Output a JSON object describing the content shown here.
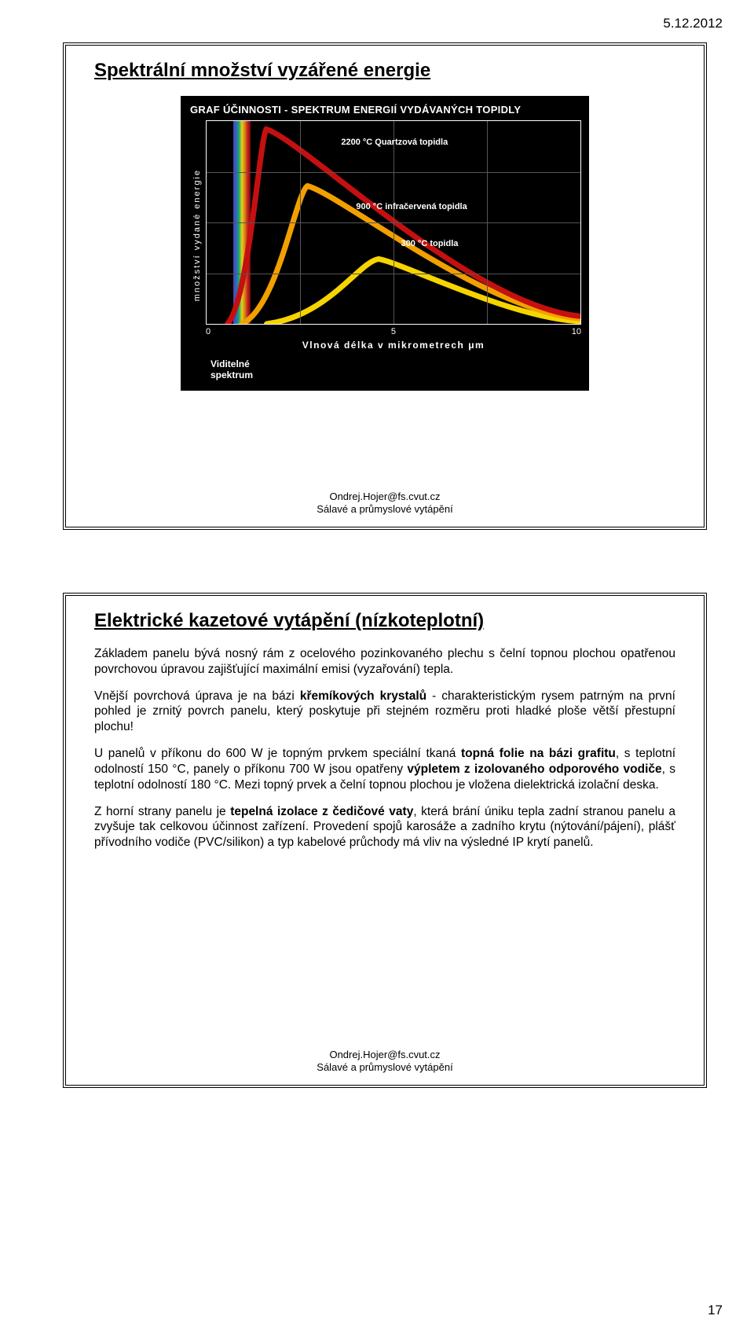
{
  "header": {
    "date": "5.12.2012",
    "page_number": "17"
  },
  "footer": {
    "email": "Ondrej.Hojer@fs.cvut.cz",
    "course": "Sálavé a průmyslové vytápění"
  },
  "slide1": {
    "title": "Spektrální množství vyzářené energie",
    "chart": {
      "title": "GRAF ÚČINNOSTI - SPEKTRUM ENERGIÍ VYDÁVANÝCH TOPIDLY",
      "ylabel": "množství vydané energie",
      "xlabel": "Vlnová délka v mikrometrech μm",
      "xticks": [
        "0",
        "5",
        "10"
      ],
      "visible_label_1": "Viditelné",
      "visible_label_2": "spektrum",
      "series": {
        "quartz": {
          "label": "2200 °C Quartzová topidla",
          "color": "#c41010",
          "peak_x_frac": 0.16,
          "peak_h_frac": 0.96
        },
        "infra": {
          "label": "900 °C infračervená topidla",
          "color": "#f2a000",
          "peak_x_frac": 0.27,
          "peak_h_frac": 0.68
        },
        "low": {
          "label": "300 °C topidla",
          "color": "#f6d400",
          "peak_x_frac": 0.46,
          "peak_h_frac": 0.32
        }
      },
      "label_pos": {
        "quartz": {
          "left_pct": 36,
          "top_pct": 8
        },
        "infra": {
          "left_pct": 40,
          "top_pct": 40
        },
        "low": {
          "left_pct": 52,
          "top_pct": 58
        }
      },
      "grid": {
        "v_fracs": [
          0.25,
          0.5,
          0.75
        ],
        "h_fracs": [
          0.25,
          0.5,
          0.75
        ]
      },
      "background": "#000000",
      "text_color": "#ffffff"
    }
  },
  "slide2": {
    "title": "Elektrické kazetové vytápění (nízkoteplotní)",
    "p1a": "Základem panelu bývá nosný rám z ocelového pozinkovaného plechu s čelní topnou plochou opatřenou povrchovou úpravou zajišťující maximální emisi (vyzařování) tepla.",
    "p2a": "Vnější povrchová úprava je na bázi ",
    "p2b_bold": "křemíkových krystalů",
    "p2c": " - charakteristickým rysem patrným na první pohled je zrnitý povrch panelu, který poskytuje při stejném rozměru proti hladké ploše větší přestupní plochu!",
    "p3a": "U panelů v příkonu do 600 W je topným prvkem speciální tkaná ",
    "p3b_bold": "topná folie na bázi grafitu",
    "p3c": ", s teplotní odolností 150 °C, panely o příkonu 700 W jsou opatřeny ",
    "p3d_bold": "výpletem z izolovaného odporového vodiče",
    "p3e": ", s teplotní odolností 180 °C. Mezi topný prvek a čelní topnou plochou je vložena dielektrická izolační деска.",
    "p3e_fix": ", s teplotní odolností 180 °C. Mezi topný prvek a čelní topnou plochou je vložena dielektrická izolační deska.",
    "p4a": "Z horní strany panelu je ",
    "p4b_bold": "tepelná izolace z čedičové vaty",
    "p4c": ", která brání úniku tepla zadní stranou panelu a zvyšuje tak celkovou účinnost zařízení. Provedení spojů karosáže a zadního krytu (nýtování/pájení), plášť přívodního vodiče (PVC/silikon) a typ kabelové průchody má vliv na výsledné IP krytí panelů."
  }
}
